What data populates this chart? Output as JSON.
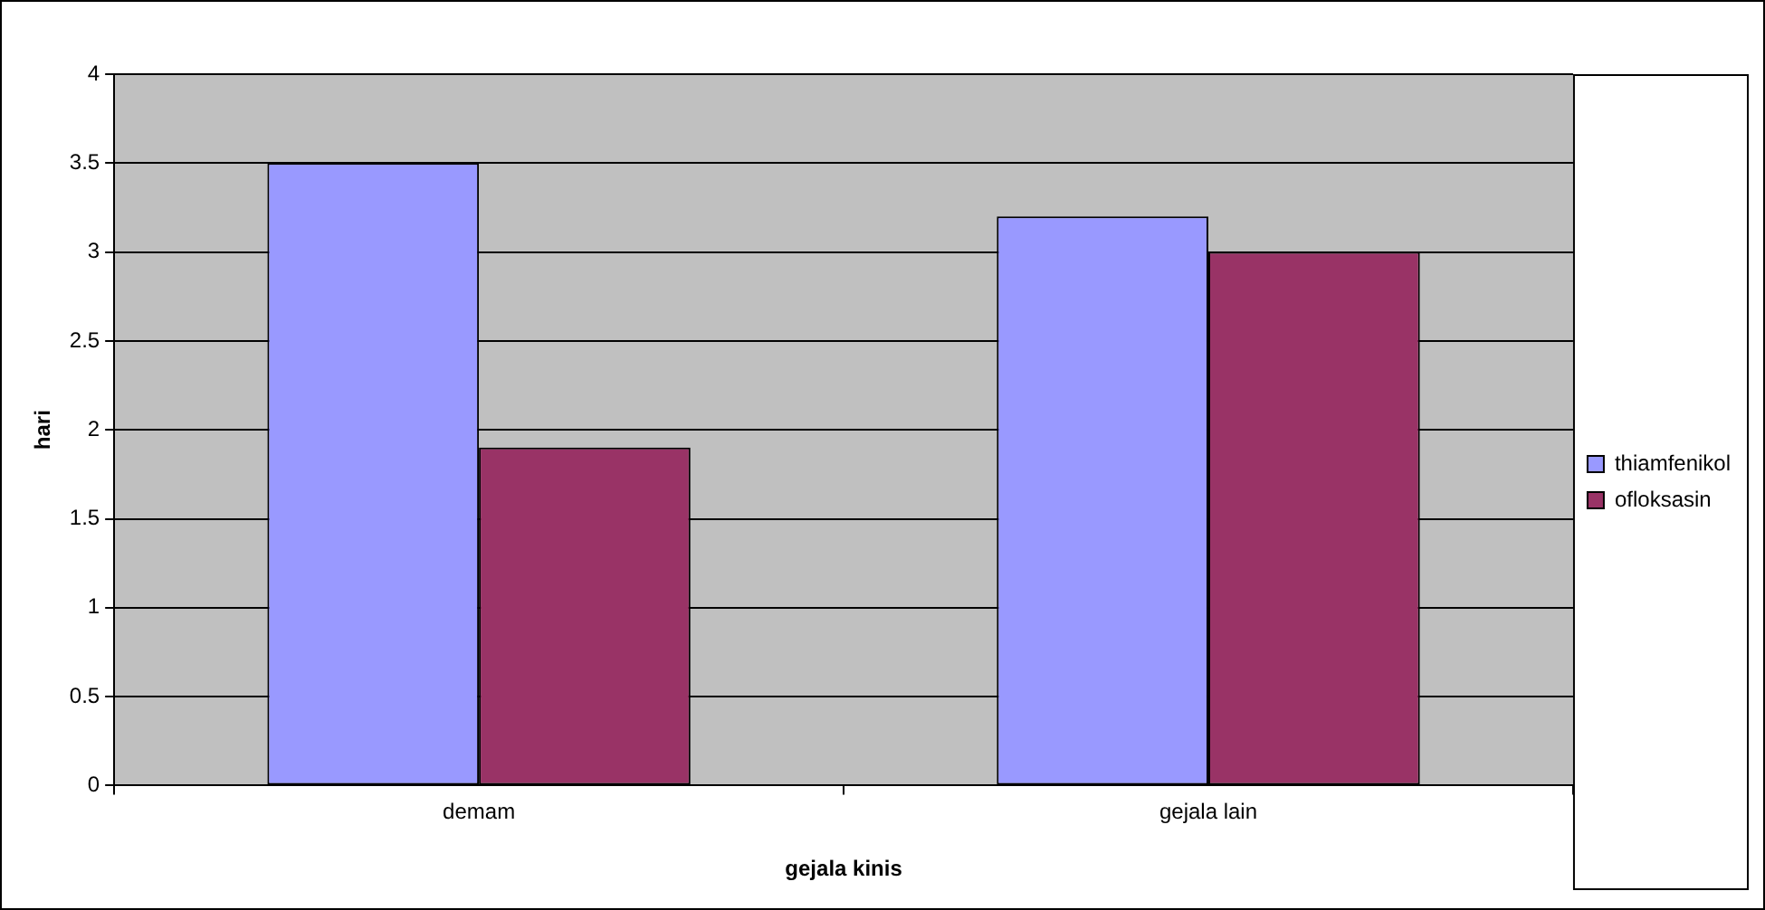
{
  "chart_data": {
    "type": "bar",
    "xlabel": "gejala kinis",
    "ylabel": "hari",
    "categories": [
      "demam",
      "gejala lain"
    ],
    "series": [
      {
        "name": "thiamfenikol",
        "color": "#9999ff",
        "values": [
          3.5,
          3.2
        ]
      },
      {
        "name": "ofloksasin",
        "color": "#993366",
        "values": [
          1.9,
          3.0
        ]
      }
    ],
    "ylim": [
      0,
      4
    ],
    "yticks": [
      0,
      0.5,
      1,
      1.5,
      2,
      2.5,
      3,
      3.5,
      4
    ],
    "grid": "y",
    "legend": "right"
  }
}
